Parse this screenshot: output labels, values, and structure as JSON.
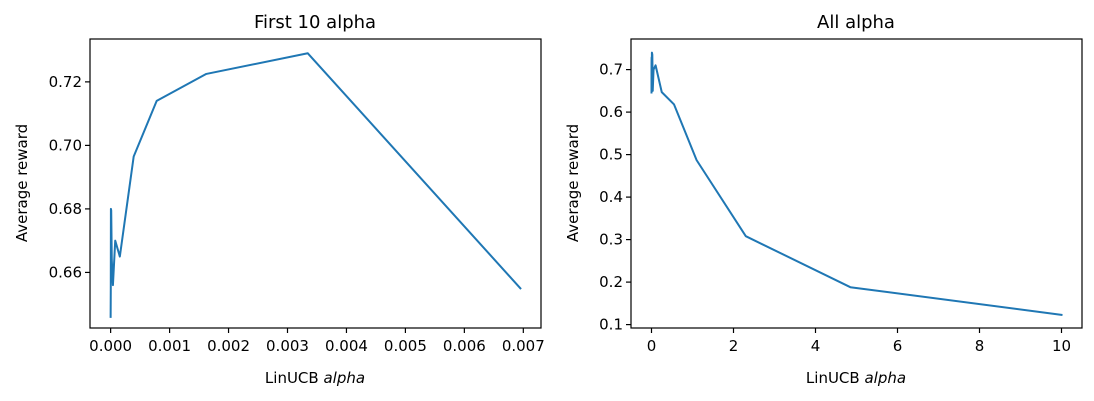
{
  "figure": {
    "background": "#ffffff",
    "line_color": "#1f77b4"
  },
  "chart_data": [
    {
      "type": "line",
      "title": "First 10 alpha",
      "xlabel_prefix": "LinUCB ",
      "xlabel_italic": "alpha",
      "ylabel": "Average reward",
      "xlim": [
        -0.00035,
        0.0073
      ],
      "ylim": [
        0.6425,
        0.7335
      ],
      "xticks": [
        0.0,
        0.001,
        0.002,
        0.003,
        0.004,
        0.005,
        0.006,
        0.007
      ],
      "xtick_labels": [
        "0.000",
        "0.001",
        "0.002",
        "0.003",
        "0.004",
        "0.005",
        "0.006",
        "0.007"
      ],
      "yticks": [
        0.66,
        0.68,
        0.7,
        0.72
      ],
      "ytick_labels": [
        "0.66",
        "0.68",
        "0.70",
        "0.72"
      ],
      "grid": false,
      "series": [
        {
          "color": "#1f77b4",
          "x": [
            0.0,
            2.5e-06,
            4.9e-06,
            9.8e-06,
            1.95e-05,
            3.9e-05,
            7.8e-05,
            0.000156,
            0.000391,
            0.000781,
            0.001623,
            0.003344,
            0.00695
          ],
          "y": [
            0.646,
            0.655,
            0.68,
            0.6795,
            0.664,
            0.656,
            0.67,
            0.665,
            0.6965,
            0.714,
            0.7225,
            0.729,
            0.655
          ]
        }
      ]
    },
    {
      "type": "line",
      "title": "All alpha",
      "xlabel_prefix": "LinUCB ",
      "xlabel_italic": "alpha",
      "ylabel": "Average reward",
      "xlim": [
        -0.5,
        10.5
      ],
      "ylim": [
        0.092,
        0.772
      ],
      "xticks": [
        0,
        2,
        4,
        6,
        8,
        10
      ],
      "xtick_labels": [
        "0",
        "2",
        "4",
        "6",
        "8",
        "10"
      ],
      "yticks": [
        0.1,
        0.2,
        0.3,
        0.4,
        0.5,
        0.6,
        0.7
      ],
      "ytick_labels": [
        "0.1",
        "0.2",
        "0.3",
        "0.4",
        "0.5",
        "0.6",
        "0.7"
      ],
      "grid": false,
      "series": [
        {
          "color": "#1f77b4",
          "x": [
            0.0,
            5e-06,
            1e-05,
            0.0001,
            0.0008,
            0.0016,
            0.0033,
            0.007,
            0.01,
            0.02,
            0.03,
            0.05,
            0.1,
            0.25,
            0.55,
            1.1,
            2.3,
            4.85,
            10.0
          ],
          "y": [
            0.646,
            0.655,
            0.68,
            0.665,
            0.714,
            0.7225,
            0.729,
            0.655,
            0.74,
            0.735,
            0.65,
            0.7,
            0.71,
            0.647,
            0.618,
            0.487,
            0.308,
            0.188,
            0.123
          ]
        }
      ]
    }
  ]
}
